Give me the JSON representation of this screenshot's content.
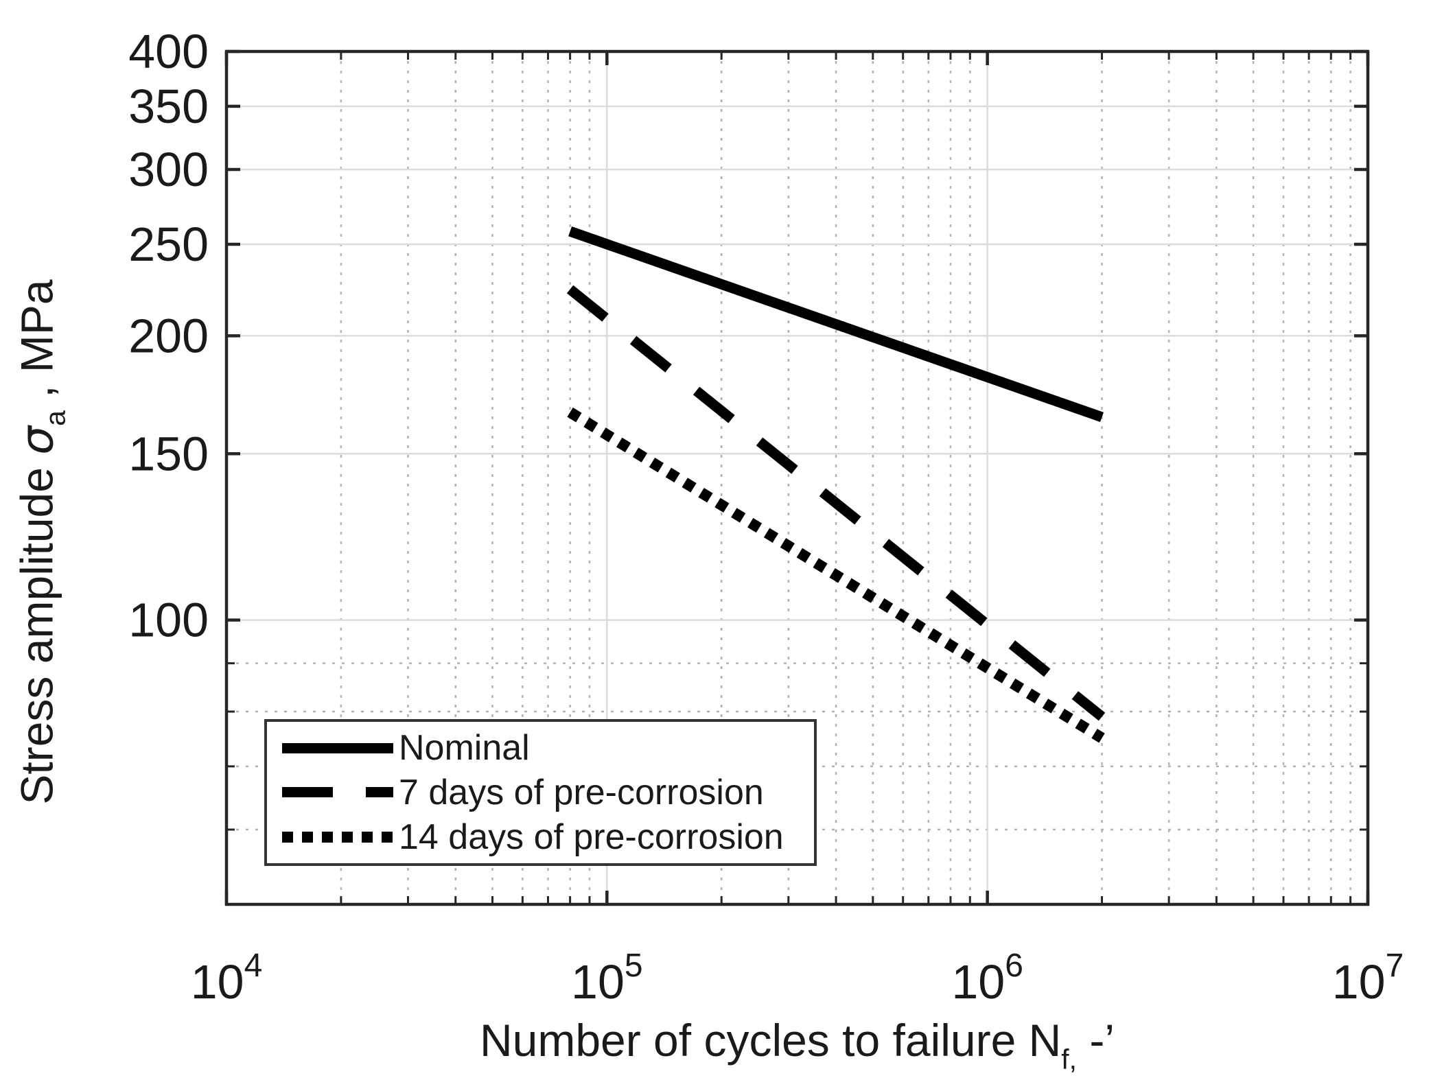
{
  "chart_data": {
    "type": "line",
    "title": "",
    "x_scale": "log",
    "y_scale": "log",
    "xlim": [
      10000,
      10000000
    ],
    "ylim": [
      50,
      400
    ],
    "x_major_ticks": [
      10000,
      100000,
      1000000,
      10000000
    ],
    "x_tick_base": "10",
    "x_tick_exponents": [
      "4",
      "5",
      "6",
      "7"
    ],
    "x_minor_multipliers": [
      2,
      3,
      4,
      5,
      6,
      7,
      8,
      9
    ],
    "y_major_ticks": [
      100,
      150,
      200,
      250,
      300,
      350,
      400
    ],
    "y_minor_ticks": [
      60,
      70,
      80,
      90
    ],
    "grid": {
      "major": "solid",
      "minor": "dotted"
    },
    "xlabel": {
      "text": "Number of cycles to failure N",
      "sub": "f,",
      "suffix": " -’"
    },
    "ylabel": {
      "text": "Stress amplitude ",
      "symbol": "σ",
      "sub": "a",
      "suffix": " , MPa"
    },
    "legend": {
      "position": "lower-left"
    },
    "series": [
      {
        "name": "Nominal",
        "line_style": "solid",
        "color": "#000000",
        "x": [
          80000,
          2000000
        ],
        "y": [
          258,
          164
        ]
      },
      {
        "name": "7 days of pre-corrosion",
        "line_style": "dashed",
        "color": "#000000",
        "x": [
          80000,
          2000000
        ],
        "y": [
          224,
          79
        ]
      },
      {
        "name": "14 days of pre-corrosion",
        "line_style": "dotted",
        "color": "#000000",
        "x": [
          80000,
          2000000
        ],
        "y": [
          166,
          75
        ]
      }
    ],
    "colors": {
      "axis": "#262626",
      "text": "#1a1a1a",
      "grid_major": "#dcdcdc",
      "grid_minor": "#b3b3b3",
      "background": "#ffffff"
    }
  }
}
